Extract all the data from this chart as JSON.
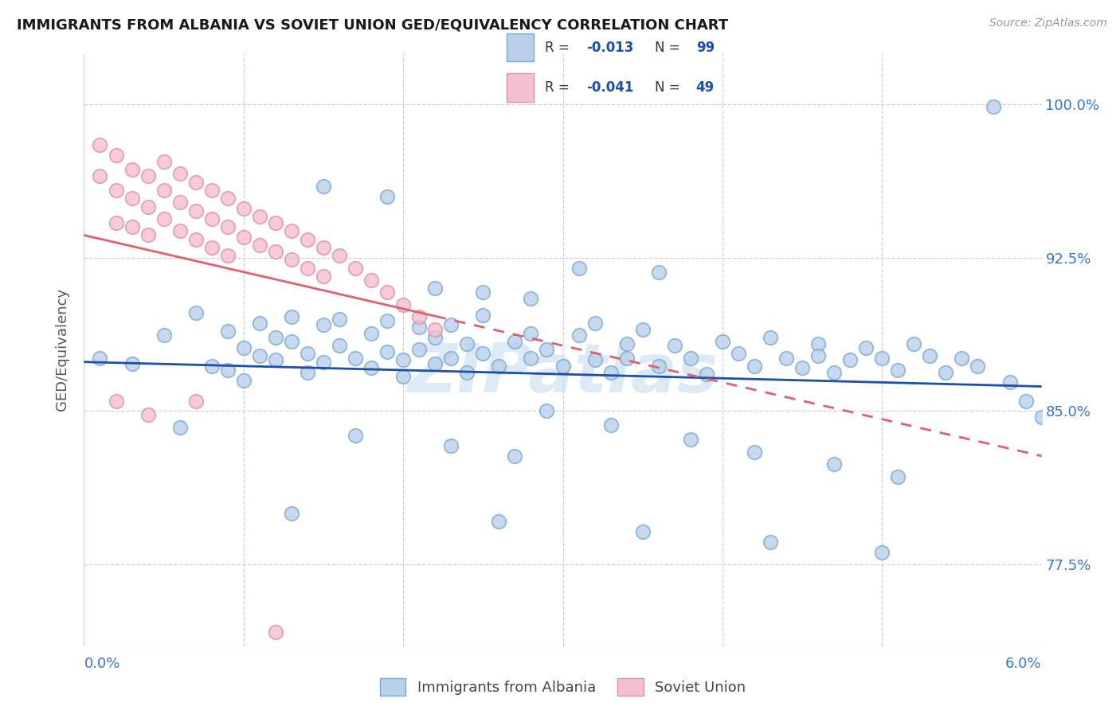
{
  "title": "IMMIGRANTS FROM ALBANIA VS SOVIET UNION GED/EQUIVALENCY CORRELATION CHART",
  "source": "Source: ZipAtlas.com",
  "ylabel": "GED/Equivalency",
  "ytick_values": [
    1.0,
    0.925,
    0.85,
    0.775
  ],
  "ytick_labels": [
    "100.0%",
    "92.5%",
    "85.0%",
    "77.5%"
  ],
  "legend_label1": "Immigrants from Albania",
  "legend_label2": "Soviet Union",
  "r1": "-0.013",
  "n1": "99",
  "r2": "-0.041",
  "n2": "49",
  "color_albania_fill": "#b8d0ea",
  "color_albania_edge": "#7aaacf",
  "color_soviet_fill": "#f5bfcf",
  "color_soviet_edge": "#e090aa",
  "color_line_albania": "#1a4faa",
  "color_line_soviet": "#e06070",
  "grid_color": "#d0d0d0",
  "background": "#ffffff",
  "title_color": "#1a1a1a",
  "axis_color": "#3377cc",
  "watermark_color": "#c5ddf0",
  "x_min": 0.0,
  "x_max": 0.06,
  "y_min": 0.735,
  "y_max": 1.025,
  "albania_x": [
    0.001,
    0.003,
    0.005,
    0.007,
    0.008,
    0.009,
    0.009,
    0.01,
    0.01,
    0.011,
    0.011,
    0.012,
    0.012,
    0.013,
    0.013,
    0.014,
    0.014,
    0.015,
    0.015,
    0.016,
    0.016,
    0.017,
    0.018,
    0.018,
    0.019,
    0.019,
    0.02,
    0.02,
    0.021,
    0.021,
    0.022,
    0.022,
    0.023,
    0.023,
    0.024,
    0.024,
    0.025,
    0.025,
    0.026,
    0.027,
    0.028,
    0.028,
    0.029,
    0.03,
    0.031,
    0.032,
    0.032,
    0.033,
    0.034,
    0.034,
    0.035,
    0.036,
    0.037,
    0.038,
    0.039,
    0.04,
    0.041,
    0.042,
    0.043,
    0.044,
    0.045,
    0.046,
    0.046,
    0.047,
    0.048,
    0.049,
    0.05,
    0.051,
    0.052,
    0.053,
    0.054,
    0.055,
    0.056,
    0.057,
    0.058,
    0.059,
    0.06,
    0.036,
    0.022,
    0.028,
    0.031,
    0.015,
    0.019,
    0.025,
    0.029,
    0.033,
    0.038,
    0.042,
    0.047,
    0.051,
    0.006,
    0.017,
    0.023,
    0.027,
    0.013,
    0.026,
    0.035,
    0.043,
    0.05
  ],
  "albania_y": [
    0.876,
    0.873,
    0.887,
    0.898,
    0.872,
    0.87,
    0.889,
    0.881,
    0.865,
    0.893,
    0.877,
    0.886,
    0.875,
    0.884,
    0.896,
    0.878,
    0.869,
    0.892,
    0.874,
    0.882,
    0.895,
    0.876,
    0.871,
    0.888,
    0.879,
    0.894,
    0.875,
    0.867,
    0.891,
    0.88,
    0.873,
    0.886,
    0.876,
    0.892,
    0.869,
    0.883,
    0.878,
    0.897,
    0.872,
    0.884,
    0.876,
    0.888,
    0.88,
    0.872,
    0.887,
    0.875,
    0.893,
    0.869,
    0.883,
    0.876,
    0.89,
    0.872,
    0.882,
    0.876,
    0.868,
    0.884,
    0.878,
    0.872,
    0.886,
    0.876,
    0.871,
    0.883,
    0.877,
    0.869,
    0.875,
    0.881,
    0.876,
    0.87,
    0.883,
    0.877,
    0.869,
    0.876,
    0.872,
    0.999,
    0.864,
    0.855,
    0.847,
    0.918,
    0.91,
    0.905,
    0.92,
    0.96,
    0.955,
    0.908,
    0.85,
    0.843,
    0.836,
    0.83,
    0.824,
    0.818,
    0.842,
    0.838,
    0.833,
    0.828,
    0.8,
    0.796,
    0.791,
    0.786,
    0.781
  ],
  "soviet_x": [
    0.001,
    0.001,
    0.002,
    0.002,
    0.002,
    0.003,
    0.003,
    0.003,
    0.004,
    0.004,
    0.004,
    0.005,
    0.005,
    0.005,
    0.006,
    0.006,
    0.006,
    0.007,
    0.007,
    0.007,
    0.008,
    0.008,
    0.008,
    0.009,
    0.009,
    0.009,
    0.01,
    0.01,
    0.011,
    0.011,
    0.012,
    0.012,
    0.013,
    0.013,
    0.014,
    0.014,
    0.015,
    0.015,
    0.016,
    0.017,
    0.018,
    0.019,
    0.02,
    0.021,
    0.022,
    0.002,
    0.004,
    0.007,
    0.012
  ],
  "soviet_y": [
    0.98,
    0.965,
    0.975,
    0.958,
    0.942,
    0.968,
    0.954,
    0.94,
    0.965,
    0.95,
    0.936,
    0.972,
    0.958,
    0.944,
    0.966,
    0.952,
    0.938,
    0.962,
    0.948,
    0.934,
    0.958,
    0.944,
    0.93,
    0.954,
    0.94,
    0.926,
    0.949,
    0.935,
    0.945,
    0.931,
    0.942,
    0.928,
    0.938,
    0.924,
    0.934,
    0.92,
    0.93,
    0.916,
    0.926,
    0.92,
    0.914,
    0.908,
    0.902,
    0.896,
    0.89,
    0.855,
    0.848,
    0.855,
    0.742
  ]
}
